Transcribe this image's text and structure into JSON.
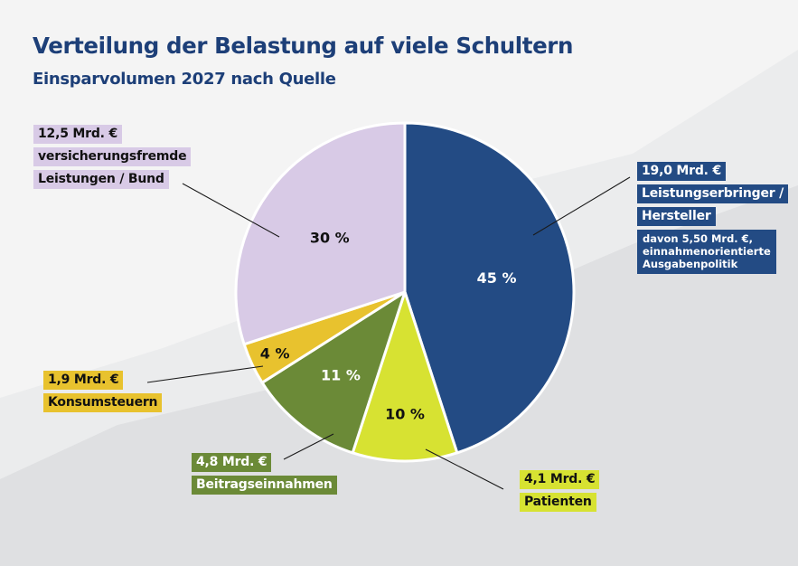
{
  "header": {
    "title": "Verteilung der Belastung auf viele Schultern",
    "subtitle": "Einsparvolumen 2027 nach Quelle"
  },
  "colors": {
    "title": "#1d3f78",
    "background_light": "#f4f4f4",
    "background_mid": "#ebeced",
    "background_dark": "#dfe0e2"
  },
  "chart_data": {
    "type": "pie",
    "title": "Verteilung der Belastung auf viele Schultern",
    "subtitle": "Einsparvolumen 2027 nach Quelle",
    "start": "top",
    "direction": "clockwise",
    "unit": "Mrd. €",
    "slices": [
      {
        "name": "Leistungserbringer / Hersteller",
        "percent": 45,
        "percent_label": "45 %",
        "amount": 19.0,
        "amount_label": "19,0 Mrd. €",
        "label_lines": [
          "Leistungserbringer /",
          "Hersteller"
        ],
        "note_lines": [
          "davon 5,50 Mrd. €,",
          "einnahmenorientierte",
          "Ausgabenpolitik"
        ],
        "color": "#234b84",
        "text_color": "#ffffff"
      },
      {
        "name": "Patienten",
        "percent": 10,
        "percent_label": "10 %",
        "amount": 4.1,
        "amount_label": "4,1 Mrd. €",
        "label_lines": [
          "Patienten"
        ],
        "color": "#d7e232",
        "text_color": "#111111"
      },
      {
        "name": "Beitragseinnahmen",
        "percent": 11,
        "percent_label": "11 %",
        "amount": 4.8,
        "amount_label": "4,8 Mrd. €",
        "label_lines": [
          "Beitragseinnahmen"
        ],
        "color": "#6b8a37",
        "text_color": "#ffffff"
      },
      {
        "name": "Konsumsteuern",
        "percent": 4,
        "percent_label": "4 %",
        "amount": 1.9,
        "amount_label": "1,9 Mrd. €",
        "label_lines": [
          "Konsumsteuern"
        ],
        "color": "#e8c22e",
        "text_color": "#111111"
      },
      {
        "name": "versicherungsfremde Leistungen / Bund",
        "percent": 30,
        "percent_label": "30 %",
        "amount": 12.5,
        "amount_label": "12,5 Mrd. €",
        "label_lines": [
          "versicherungsfremde",
          "Leistungen / Bund"
        ],
        "color": "#d8cae6",
        "text_color": "#111111"
      }
    ]
  }
}
